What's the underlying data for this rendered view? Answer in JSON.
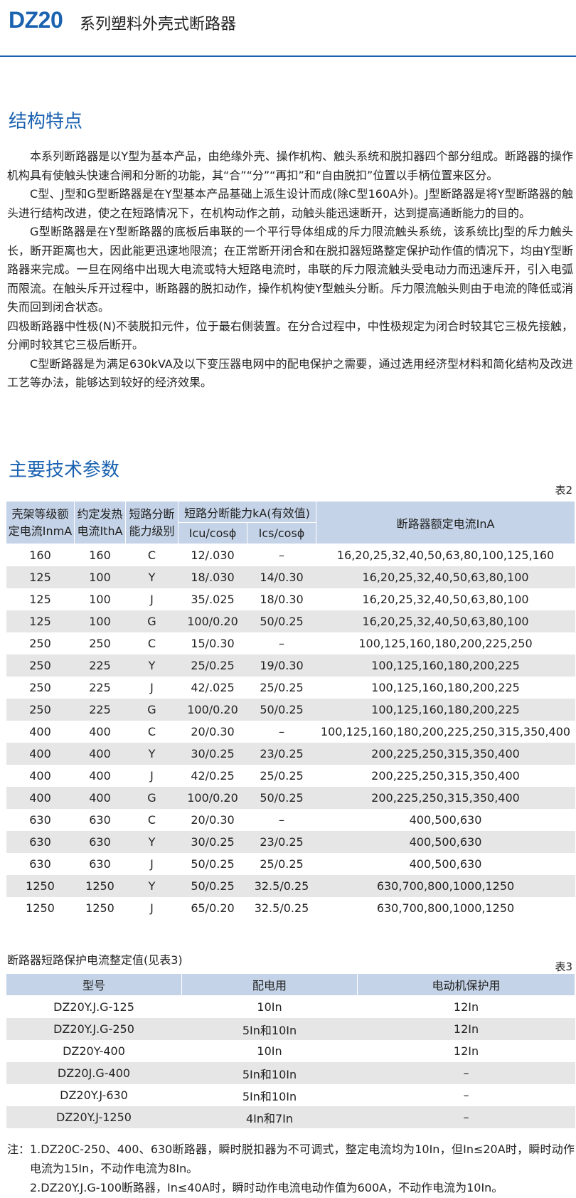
{
  "header": {
    "brand": "DZ20",
    "title": "系列塑料外壳式断路器"
  },
  "features": {
    "heading": "结构特点",
    "paragraphs": [
      "本系列断路器是以Y型为基本产品，由绝缘外壳、操作机构、触头系统和脱扣器四个部分组成。断路器的操作机构具有使触头快速合闸和分断的功能，其“合”“分”“再扣”和“自由脱扣”位置以手柄位置来区分。",
      "C型、J型和G型断路器是在Y型基本产品基础上派生设计而成(除C型160A外)。J型断路器是将Y型断路器的触头进行结构改进，使之在短路情况下，在机构动作之前，动触头能迅速断开，达到提高通断能力的目的。",
      "G型断路器是在Y型断路器的底板后串联的一个平行导体组成的斥力限流触头系统，该系统比J型的斥力触头长，断开距离也大，因此能更迅速地限流；在正常断开闭合和在脱扣器短路整定保护动作值的情况下，均由Y型断路器来完成。一旦在网络中出现大电流或特大短路电流时，串联的斥力限流触头受电动力而迅速斥开，引入电弧而限流。在触头斥开过程中，断路器的脱扣动作，操作机构使Y型触头分断。斥力限流触头则由于电流的降低或消失而回到闭合状态。",
      "四极断路器中性极(N)不装脱扣元件，位于最右侧装置。在分合过程中，中性极规定为闭合时较其它三极先接触，分闸时较其它三极后断开。",
      "C型断路器是为满足630kVA及以下变压器电网中的配电保护之需要，通过选用经济型材料和简化结构及改进工艺等办法，能够达到较好的经济效果。"
    ]
  },
  "specs": {
    "heading": "主要技术参数",
    "table2": {
      "caption": "表2",
      "headers": {
        "frame": "壳架等级额定电流InmA",
        "rated": "约定发热电流IthA",
        "level": "短路分断能力级别",
        "capacity": "短路分断能力kA(有效值)",
        "icu": "Icu/cosϕ",
        "ics": "Ics/cosϕ",
        "inA": "断路器额定电流InA"
      },
      "rows": [
        [
          "160",
          "160",
          "C",
          "12/.030",
          "–",
          "16,20,25,32,40,50,63,80,100,125,160"
        ],
        [
          "125",
          "100",
          "Y",
          "18/.030",
          "14/0.30",
          "16,20,25,32,40,50,63,80,100"
        ],
        [
          "125",
          "100",
          "J",
          "35/.025",
          "18/0.30",
          "16,20,25,32,40,50,63,80,100"
        ],
        [
          "125",
          "100",
          "G",
          "100/0.20",
          "50/0.25",
          "16,20,25,32,40,50,63,80,100"
        ],
        [
          "250",
          "250",
          "C",
          "15/0.30",
          "–",
          "100,125,160,180,200,225,250"
        ],
        [
          "250",
          "225",
          "Y",
          "25/0.25",
          "19/0.30",
          "100,125,160,180,200,225"
        ],
        [
          "250",
          "225",
          "J",
          "42/.025",
          "25/0.25",
          "100,125,160,180,200,225"
        ],
        [
          "250",
          "225",
          "G",
          "100/0.20",
          "50/0.25",
          "100,125,160,180,200,225"
        ],
        [
          "400",
          "400",
          "C",
          "20/0.30",
          "–",
          "100,125,160,180,200,225,250,315,350,400"
        ],
        [
          "400",
          "400",
          "Y",
          "30/0.25",
          "23/0.25",
          "200,225,250,315,350,400"
        ],
        [
          "400",
          "400",
          "J",
          "42/0.25",
          "25/0.25",
          "200,225,250,315,350,400"
        ],
        [
          "400",
          "400",
          "G",
          "100/0.20",
          "50/0.25",
          "200,225,250,315,350,400"
        ],
        [
          "630",
          "630",
          "C",
          "20/0.30",
          "–",
          "400,500,630"
        ],
        [
          "630",
          "630",
          "Y",
          "30/0.25",
          "23/0.25",
          "400,500,630"
        ],
        [
          "630",
          "630",
          "J",
          "50/0.25",
          "25/0.25",
          "400,500,630"
        ],
        [
          "1250",
          "1250",
          "Y",
          "50/0.25",
          "32.5/0.25",
          "630,700,800,1000,1250"
        ],
        [
          "1250",
          "1250",
          "J",
          "65/0.20",
          "32.5/0.25",
          "630,700,800,1000,1250"
        ]
      ]
    },
    "table3": {
      "title": "断路器短路保护电流整定值(见表3)",
      "caption": "表3",
      "headers": [
        "型号",
        "配电用",
        "电动机保护用"
      ],
      "rows": [
        [
          "DZ20Y.J.G-125",
          "10In",
          "12In"
        ],
        [
          "DZ20Y.J.G-250",
          "5In和10In",
          "12In"
        ],
        [
          "DZ20Y-400",
          "10In",
          "12In"
        ],
        [
          "DZ20J.G-400",
          "5In和10In",
          "–"
        ],
        [
          "DZ20Y.J-630",
          "5In和10In",
          "–"
        ],
        [
          "DZ20Y.J-1250",
          "4In和7In",
          "–"
        ]
      ]
    }
  },
  "notes": {
    "label": "注：",
    "items": [
      "1.DZ20C-250、400、630断路器，瞬时脱扣器为不可调式，整定电流均为10In，但In≤20A时，瞬时动作电流为15In，不动作电流为8In。",
      "2.DZ20Y.J.G-100断路器，In≤40A时，瞬时动作电流电动作值为600A，不动作电流为10In。"
    ]
  }
}
